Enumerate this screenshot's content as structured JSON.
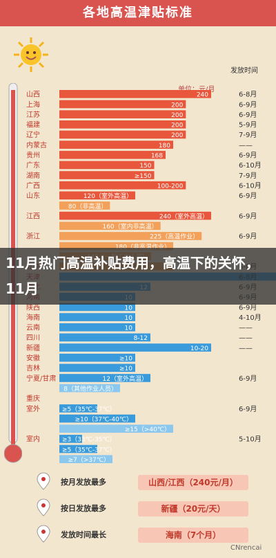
{
  "title": "各地高温津贴标准",
  "unit_label": "单位：元/月",
  "release_header": "发放时间",
  "overlay_text": "11月热门高温补贴费用，高温下的关怀，11月",
  "watermark": "CNrencai",
  "colors": {
    "header": "#d9534f",
    "bar_orange": "#e8563b",
    "bar_light_orange": "#f2a05a",
    "bar_blue": "#3a9bdc",
    "bar_light_blue": "#8cc8ee",
    "text_province": "#c0392b"
  },
  "chart_data": {
    "type": "bar",
    "title": "各地高温津贴标准",
    "unit": "单位：元/月",
    "xlim": [
      0,
      240
    ],
    "rows": [
      {
        "province": "山西",
        "value": 240,
        "label": "240",
        "period": "6-8月",
        "color": "orange"
      },
      {
        "province": "上海",
        "value": 200,
        "label": "200",
        "period": "6-9月",
        "color": "orange"
      },
      {
        "province": "江苏",
        "value": 200,
        "label": "200",
        "period": "6-9月",
        "color": "orange"
      },
      {
        "province": "福建",
        "value": 200,
        "label": "200",
        "period": "5-9月",
        "color": "orange"
      },
      {
        "province": "辽宁",
        "value": 200,
        "label": "200",
        "period": "7-9月",
        "color": "orange"
      },
      {
        "province": "内蒙古",
        "value": 180,
        "label": "180",
        "period": "——",
        "color": "orange"
      },
      {
        "province": "贵州",
        "value": 168,
        "label": "168",
        "period": "6-9月",
        "color": "orange"
      },
      {
        "province": "广东",
        "value": 150,
        "label": "150",
        "period": "6-10月",
        "color": "orange"
      },
      {
        "province": "湖南",
        "value": 150,
        "label": "≥150",
        "period": "7-9月",
        "color": "orange"
      },
      {
        "province": "广西",
        "value": 200,
        "label": "100-200",
        "period": "6-10月",
        "color": "orange"
      },
      {
        "province": "山东",
        "value": 120,
        "label": "120（室外高温）",
        "period": "6-9月",
        "color": "orange"
      },
      {
        "province": "",
        "value": 80,
        "label": "80（非高温）",
        "period": "",
        "color": "light"
      },
      {
        "province": "江西",
        "value": 240,
        "label": "240（室外高温）",
        "period": "6-9月",
        "color": "orange"
      },
      {
        "province": "",
        "value": 160,
        "label": "160（室内非高温）",
        "period": "",
        "color": "light"
      },
      {
        "province": "浙江",
        "value": 225,
        "label": "225（高温作业）",
        "period": "6-9月",
        "color": "light"
      },
      {
        "province": "",
        "value": 180,
        "label": "180（非高温作业）",
        "period": "",
        "color": "light"
      },
      {
        "province": "",
        "value": 145,
        "label": "145（一般工作人员）",
        "period": "",
        "color": "light"
      },
      {
        "province": "北京",
        "value": 180,
        "label": "",
        "period": "6-8月",
        "color": "light"
      },
      {
        "province": "天津",
        "value": 150,
        "label": "",
        "period": "6-8月",
        "color": "blue"
      },
      {
        "province": "湖北",
        "value": 12,
        "label": "12",
        "period": "6-9月",
        "color": "blue"
      },
      {
        "province": "河南",
        "value": 10,
        "label": "10",
        "period": "6-9月",
        "color": "blue"
      },
      {
        "province": "陕西",
        "value": 10,
        "label": "10",
        "period": "6-9月",
        "color": "blue"
      },
      {
        "province": "海南",
        "value": 10,
        "label": "10",
        "period": "4-10月",
        "color": "blue"
      },
      {
        "province": "云南",
        "value": 10,
        "label": "10",
        "period": "——",
        "color": "blue"
      },
      {
        "province": "四川",
        "value": 12,
        "label": "8-12",
        "period": "——",
        "color": "blue"
      },
      {
        "province": "新疆",
        "value": 20,
        "label": "10-20",
        "period": "——",
        "color": "blue"
      },
      {
        "province": "安徽",
        "value": 10,
        "label": "≥10",
        "period": "",
        "color": "blue"
      },
      {
        "province": "吉林",
        "value": 10,
        "label": "≥10",
        "period": "",
        "color": "blue"
      },
      {
        "province": "宁夏/甘肃",
        "value": 12,
        "label": "12（室外高温）",
        "period": "6-9月",
        "color": "blue"
      },
      {
        "province": "",
        "value": 8,
        "label": "8（其他作业人员）",
        "period": "",
        "color": "lightblue"
      },
      {
        "province": "重庆",
        "value": 0,
        "label": "",
        "period": "",
        "color": "none"
      },
      {
        "province": "室外",
        "value": 5,
        "label": "≥5（35℃-37℃）",
        "period": "6-9月",
        "color": "blue"
      },
      {
        "province": "",
        "value": 10,
        "label": "≥10（37℃-40℃）",
        "period": "",
        "color": "blue"
      },
      {
        "province": "",
        "value": 15,
        "label": "≥15（>40℃）",
        "period": "",
        "color": "lightblue"
      },
      {
        "province": "室内",
        "value": 3,
        "label": "≥3（33℃-35℃）",
        "period": "5-10月",
        "color": "blue"
      },
      {
        "province": "",
        "value": 5,
        "label": "≥5（35℃-37℃）",
        "period": "",
        "color": "blue"
      },
      {
        "province": "",
        "value": 7,
        "label": "≥7（>37℃）",
        "period": "",
        "color": "lightblue"
      }
    ]
  },
  "summary": [
    {
      "label": "按月发放最多",
      "value": "山西/江西（240元/月）"
    },
    {
      "label": "按日发放最多",
      "value": "新疆（20元/天）"
    },
    {
      "label": "发放时间最长",
      "value": "海南（7个月）"
    }
  ]
}
